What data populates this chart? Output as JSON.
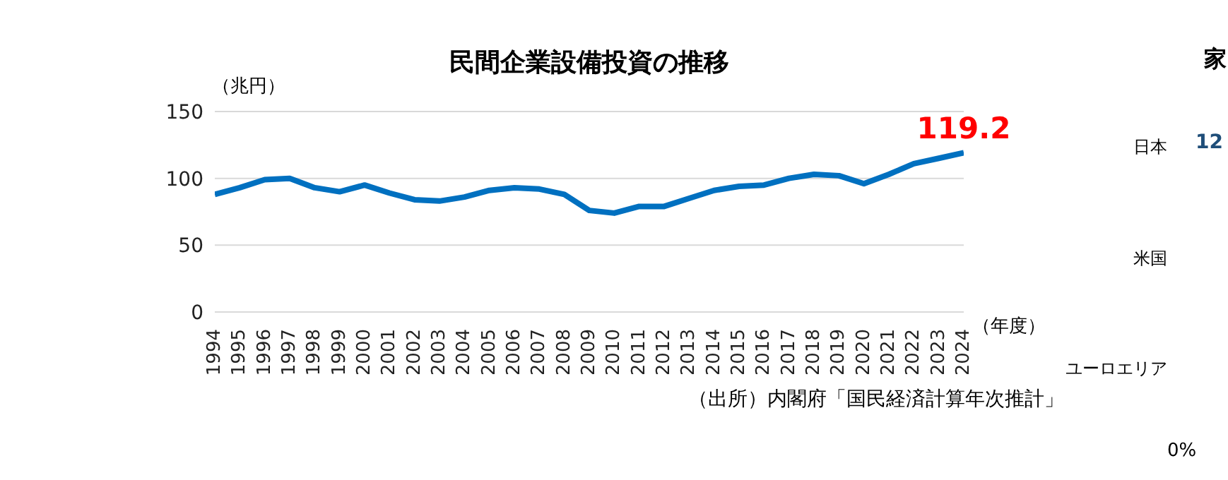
{
  "chart_data": [
    {
      "type": "line",
      "title": "民間企業設備投資の推移",
      "ylabel": "（兆円）",
      "xlabel": "（年度）",
      "annotations": [
        {
          "text": "119.2",
          "x": "2024",
          "y": 119.2
        },
        "（出所）内閣府「国民経済計算年次推計」"
      ],
      "categories": [
        "1994",
        "1995",
        "1996",
        "1997",
        "1998",
        "1999",
        "2000",
        "2001",
        "2002",
        "2003",
        "2004",
        "2005",
        "2006",
        "2007",
        "2008",
        "2009",
        "2010",
        "2011",
        "2012",
        "2013",
        "2014",
        "2015",
        "2016",
        "2017",
        "2018",
        "2019",
        "2020",
        "2021",
        "2022",
        "2023",
        "2024"
      ],
      "series": [
        {
          "color": "#0070c0",
          "values": [
            88,
            93,
            99,
            100,
            93,
            90,
            95,
            89,
            84,
            83,
            86,
            91,
            93,
            92,
            88,
            76,
            74,
            79,
            79,
            85,
            91,
            94,
            95,
            100,
            103,
            102,
            96,
            103,
            111,
            115,
            119.2
          ]
        }
      ],
      "ylim": [
        0,
        150
      ],
      "yticks": [
        0,
        50,
        100,
        150
      ],
      "grid": "y",
      "marker": "none",
      "line_style": "solid",
      "legend": false
    },
    {
      "type": "other",
      "title": "家",
      "categories": [
        "日本",
        "米国",
        "ユーロエリア"
      ],
      "annotations": [
        "12",
        "0%"
      ]
    }
  ]
}
